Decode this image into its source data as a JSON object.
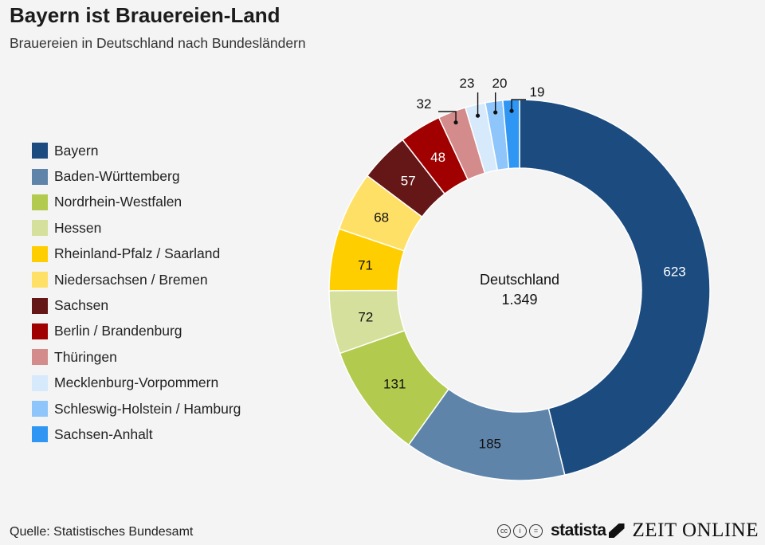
{
  "header": {
    "title": "Bayern ist Brauereien-Land",
    "subtitle": "Brauereien in Deutschland nach Bundesländern"
  },
  "chart_data": {
    "type": "pie",
    "variant": "donut",
    "center_label": "Deutschland",
    "center_value": "1.349",
    "legend_position": "left",
    "categories": [
      "Bayern",
      "Baden-Württemberg",
      "Nordrhein-Westfalen",
      "Hessen",
      "Rheinland-Pfalz / Saarland",
      "Niedersachsen / Bremen",
      "Sachsen",
      "Berlin / Brandenburg",
      "Thüringen",
      "Mecklenburg-Vorpommern",
      "Schleswig-Holstein / Hamburg",
      "Sachsen-Anhalt"
    ],
    "values": [
      623,
      185,
      131,
      72,
      71,
      68,
      57,
      48,
      32,
      23,
      20,
      19
    ],
    "colors": [
      "#1b4b7f",
      "#5f84aa",
      "#b2ca4d",
      "#d4e09c",
      "#ffce00",
      "#ffe066",
      "#651616",
      "#a00000",
      "#d48b8b",
      "#d6eafc",
      "#8ec5fb",
      "#2f96f4"
    ],
    "label_colors": [
      "#ffffff",
      "#111111",
      "#111111",
      "#111111",
      "#111111",
      "#111111",
      "#ffffff",
      "#ffffff",
      "#111111",
      "#111111",
      "#111111",
      "#111111"
    ],
    "label_outside": [
      false,
      false,
      false,
      false,
      false,
      false,
      false,
      false,
      true,
      true,
      true,
      true
    ]
  },
  "footer": {
    "source": "Quelle: Statistisches Bundesamt",
    "cc_icons": [
      "cc-icon",
      "by-icon",
      "nd-icon"
    ],
    "statista_logo": "statista",
    "zeit_logo": "ZEIT ONLINE"
  }
}
